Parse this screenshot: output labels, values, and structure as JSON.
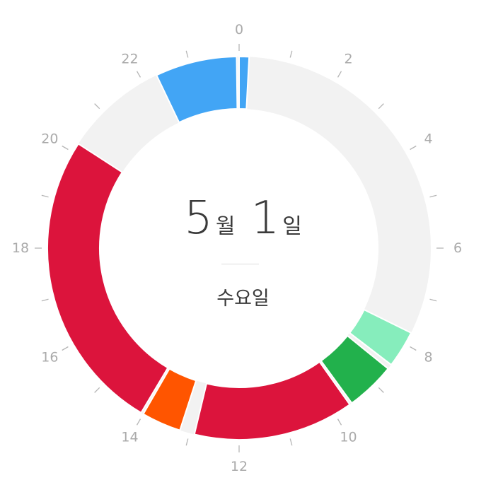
{
  "date": {
    "month": "5",
    "month_unit": "월",
    "day": "1",
    "day_unit": "일",
    "weekday": "수요일"
  },
  "chart_data": {
    "type": "donut",
    "clock": "24h",
    "hour_labels": [
      "0",
      "2",
      "4",
      "6",
      "8",
      "10",
      "12",
      "14",
      "16",
      "18",
      "20",
      "22"
    ],
    "background_color": "#f2f2f2",
    "segments": [
      {
        "start": 0.0,
        "end": 0.2,
        "color": "#42a5f5"
      },
      {
        "start": 7.75,
        "end": 8.5,
        "color": "#86edbc"
      },
      {
        "start": 8.6,
        "end": 9.6,
        "color": "#22b14c"
      },
      {
        "start": 9.65,
        "end": 12.9,
        "color": "#dc143c"
      },
      {
        "start": 13.2,
        "end": 14.0,
        "color": "#ff5500"
      },
      {
        "start": 14.05,
        "end": 20.2,
        "color": "#dc143c"
      },
      {
        "start": 22.3,
        "end": 23.95,
        "color": "#42a5f5"
      }
    ]
  }
}
